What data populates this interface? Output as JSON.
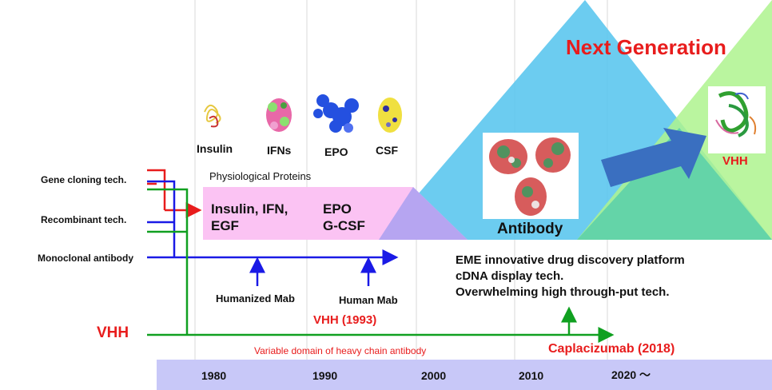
{
  "header": {
    "next_generation": "Next Generation"
  },
  "proteins": [
    {
      "label": "Insulin",
      "icon": "insulin-structure-icon"
    },
    {
      "label": "IFNs",
      "icon": "ifn-structure-icon"
    },
    {
      "label": "EPO",
      "icon": "epo-structure-icon"
    },
    {
      "label": "CSF",
      "icon": "csf-structure-icon"
    }
  ],
  "physiological": {
    "title": "Physiological  Proteins",
    "left_line1": "Insulin, IFN,",
    "left_line2": "EGF",
    "right_line1": "EPO",
    "right_line2": "G-CSF"
  },
  "antibody": {
    "label": "Antibody",
    "icon": "antibody-structure-icon"
  },
  "vhh_structure": {
    "label": "VHH",
    "icon": "vhh-structure-icon"
  },
  "technologies": {
    "gene_cloning": "Gene cloning tech.",
    "recombinant": "Recombinant tech.",
    "monoclonal": "Monoclonal antibody"
  },
  "mab": {
    "humanized": "Humanized Mab",
    "human": "Human Mab"
  },
  "vhh_track": {
    "label": "VHH",
    "year_label": "VHH (1993)",
    "subtitle": "Variable domain of heavy chain antibody",
    "milestone": "Caplacizumab (2018)"
  },
  "platform": [
    "EME innovative drug discovery platform",
    "cDNA display tech.",
    "Overwhelming high through-put tech."
  ],
  "timeline": {
    "years": [
      "1980",
      "1990",
      "2000",
      "2010",
      "2020 〜"
    ]
  },
  "colors": {
    "red": "#e81c1c",
    "blue": "#1a1ae6",
    "green": "#10a020",
    "pink": "#fbc3f3",
    "sky": "#5cc6ee",
    "lightgreen": "#aef38e",
    "arrow": "#3a6fc0",
    "timeline_bar": "#c8c8f8"
  }
}
